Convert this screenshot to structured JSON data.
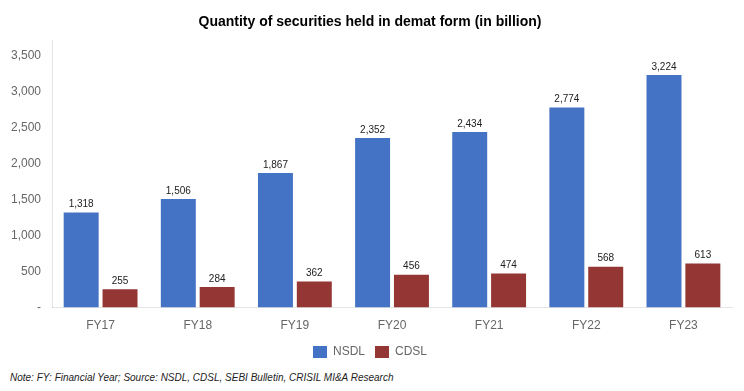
{
  "chart_data": {
    "type": "bar",
    "title": "Quantity of securities held in demat form (in billion)",
    "categories": [
      "FY17",
      "FY18",
      "FY19",
      "FY20",
      "FY21",
      "FY22",
      "FY23"
    ],
    "series": [
      {
        "name": "NSDL",
        "color": "#4472C4",
        "values": [
          1318,
          1506,
          1867,
          2352,
          2434,
          2774,
          3224
        ],
        "value_labels": [
          "1,318",
          "1,506",
          "1,867",
          "2,352",
          "2,434",
          "2,774",
          "3,224"
        ]
      },
      {
        "name": "CDSL",
        "color": "#943634",
        "values": [
          255,
          284,
          362,
          456,
          474,
          568,
          613
        ],
        "value_labels": [
          "255",
          "284",
          "362",
          "456",
          "474",
          "568",
          "613"
        ]
      }
    ],
    "ylim": [
      0,
      3700
    ],
    "yticks": [
      {
        "value": 0,
        "label": "-"
      },
      500,
      {
        "value": 1000,
        "label": "1,000"
      },
      {
        "value": 1500,
        "label": "1,500"
      },
      {
        "value": 2000,
        "label": "2,000"
      },
      {
        "value": 2500,
        "label": "2,500"
      },
      {
        "value": 3000,
        "label": "3,000"
      },
      {
        "value": 3500,
        "label": "3,500"
      }
    ],
    "grid": false,
    "legend": "bottom",
    "data_labels": true,
    "annotations": [
      "Note: FY: Financial Year; Source: NSDL, CDSL, SEBI Bulletin, CRISIL MI&A Research"
    ]
  }
}
